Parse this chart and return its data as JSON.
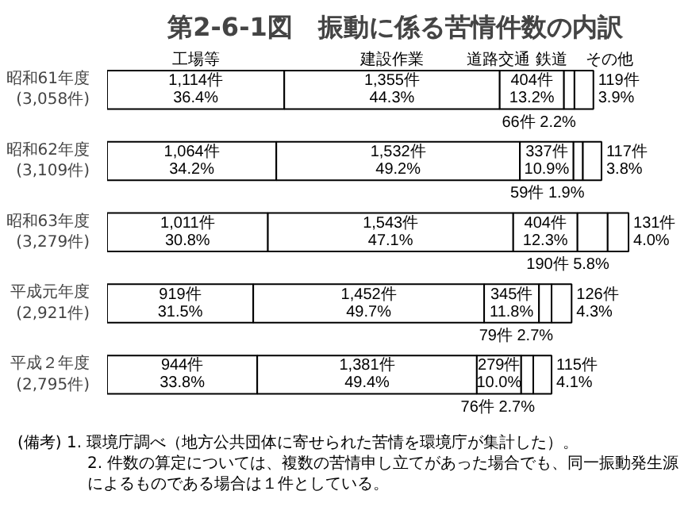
{
  "chart_data": {
    "type": "bar",
    "orientation": "horizontal",
    "stacked": true,
    "title": "第2-6-1図　振動に係る苦情件数の内訳",
    "categories": [
      "昭和61年度\n(3,058件)",
      "昭和62年度\n(3,109件)",
      "昭和63年度\n(3,279件)",
      "平成元年度\n(2,921件)",
      "平成２年度\n(2,795件)"
    ],
    "series": [
      {
        "name": "工場等",
        "color": "#ffffff",
        "values": [
          1114,
          1064,
          1011,
          919,
          944
        ],
        "value_labels": [
          "1,114件\n36.4%",
          "1,064件\n34.2%",
          "1,011件\n30.8%",
          "919件\n31.5%",
          "944件\n33.8%"
        ]
      },
      {
        "name": "建設作業",
        "color": "#ffffff",
        "values": [
          1355,
          1532,
          1543,
          1452,
          1381
        ],
        "value_labels": [
          "1,355件\n44.3%",
          "1,532件\n49.2%",
          "1,543件\n47.1%",
          "1,452件\n49.7%",
          "1,381件\n49.4%"
        ]
      },
      {
        "name": "道路交通",
        "color": "#ffffff",
        "values": [
          404,
          337,
          404,
          345,
          279
        ],
        "value_labels": [
          "404件\n13.2%",
          "337件\n10.9%",
          "404件\n12.3%",
          "345件\n11.8%",
          "279件\n10.0%"
        ]
      },
      {
        "name": "鉄道",
        "color": "#ffffff",
        "values": [
          66,
          59,
          190,
          79,
          76
        ],
        "value_labels": [
          "66件\n2.2%",
          "59件\n1.9%",
          "190件\n5.8%",
          "79件\n2.7%",
          "76件\n2.7%"
        ]
      },
      {
        "name": "その他",
        "color": "#ffffff",
        "values": [
          119,
          117,
          131,
          126,
          115
        ],
        "value_labels": [
          "119件\n3.9%",
          "117件\n3.8%",
          "131件\n4.0%",
          "126件\n4.3%",
          "115件\n4.1%"
        ]
      }
    ],
    "annotations": [
      "(備考) 1. 環境庁調べ（地方公共団体に寄せられた苦情を環境庁が集計した）。",
      "2. 件数の算定については、複数の苦情申し立てがあった場合でも、同一振動発生源によるものである場合は１件としている。"
    ]
  }
}
